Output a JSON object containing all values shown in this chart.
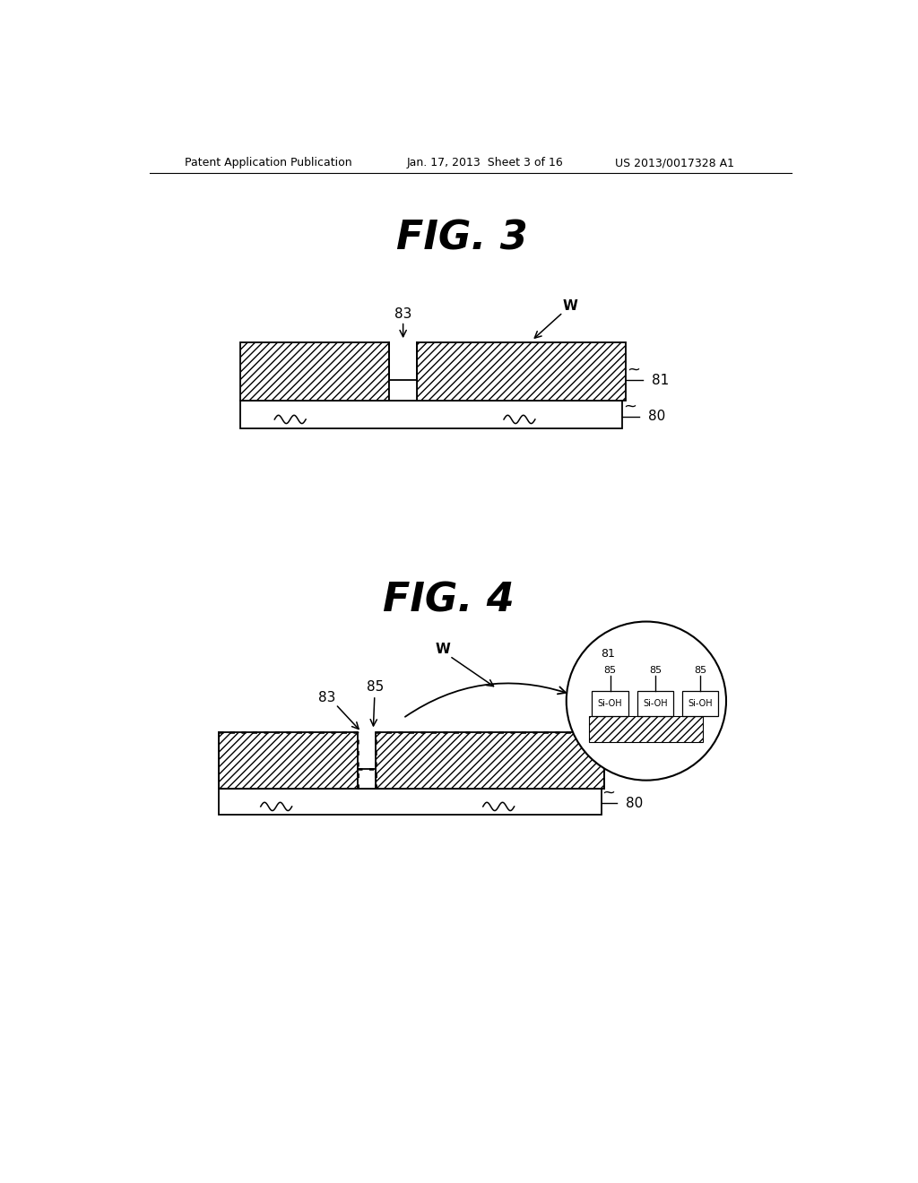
{
  "background_color": "#ffffff",
  "header_text_left": "Patent Application Publication",
  "header_text_mid": "Jan. 17, 2013  Sheet 3 of 16",
  "header_text_right": "US 2013/0017328 A1",
  "fig3_title": "FIG. 3",
  "fig4_title": "FIG. 4",
  "label_color": "#000000",
  "hatch_pattern": "////"
}
